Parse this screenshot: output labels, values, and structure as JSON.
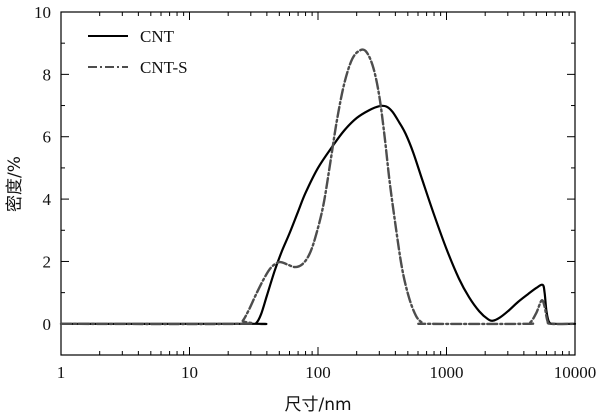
{
  "chart_data": {
    "type": "line",
    "title": "",
    "xlabel": "尺寸/nm",
    "ylabel": "密度/%",
    "xscale": "log",
    "xlim": [
      1,
      10000
    ],
    "ylim": [
      -1,
      10
    ],
    "xticks": [
      {
        "value": 1,
        "label": "1"
      },
      {
        "value": 10,
        "label": "10"
      },
      {
        "value": 100,
        "label": "100"
      },
      {
        "value": 1000,
        "label": "1000"
      },
      {
        "value": 10000,
        "label": "10000"
      }
    ],
    "yticks": [
      {
        "value": 0,
        "label": "0"
      },
      {
        "value": 2,
        "label": "2"
      },
      {
        "value": 4,
        "label": "4"
      },
      {
        "value": 6,
        "label": "6"
      },
      {
        "value": 8,
        "label": "8"
      },
      {
        "value": 10,
        "label": "10"
      }
    ],
    "legend_position": "top-left",
    "series": [
      {
        "name": "CNT",
        "style": "solid",
        "color": "#000000",
        "points": [
          [
            1,
            0
          ],
          [
            30,
            0
          ],
          [
            33,
            0.02
          ],
          [
            36,
            0.3
          ],
          [
            40,
            0.9
          ],
          [
            46,
            1.7
          ],
          [
            52,
            2.3
          ],
          [
            60,
            2.9
          ],
          [
            70,
            3.6
          ],
          [
            80,
            4.2
          ],
          [
            100,
            5.0
          ],
          [
            130,
            5.7
          ],
          [
            160,
            6.2
          ],
          [
            200,
            6.6
          ],
          [
            250,
            6.85
          ],
          [
            300,
            6.98
          ],
          [
            340,
            6.97
          ],
          [
            380,
            6.8
          ],
          [
            430,
            6.45
          ],
          [
            480,
            6.1
          ],
          [
            550,
            5.5
          ],
          [
            650,
            4.6
          ],
          [
            800,
            3.5
          ],
          [
            1000,
            2.4
          ],
          [
            1250,
            1.45
          ],
          [
            1500,
            0.85
          ],
          [
            1800,
            0.4
          ],
          [
            2100,
            0.15
          ],
          [
            2300,
            0.1
          ],
          [
            2600,
            0.2
          ],
          [
            3000,
            0.4
          ],
          [
            3600,
            0.7
          ],
          [
            4300,
            0.95
          ],
          [
            5000,
            1.15
          ],
          [
            5600,
            1.25
          ],
          [
            5800,
            1.0
          ],
          [
            6000,
            0.4
          ],
          [
            6300,
            0.05
          ],
          [
            7000,
            0
          ],
          [
            10000,
            0
          ]
        ]
      },
      {
        "name": "CNT-S",
        "style": "dash-dot",
        "color": "#4d4d4d",
        "points": [
          [
            1,
            0
          ],
          [
            24,
            0
          ],
          [
            26,
            0.1
          ],
          [
            29,
            0.45
          ],
          [
            33,
            0.95
          ],
          [
            38,
            1.45
          ],
          [
            43,
            1.8
          ],
          [
            50,
            1.98
          ],
          [
            58,
            1.9
          ],
          [
            66,
            1.82
          ],
          [
            75,
            1.9
          ],
          [
            85,
            2.2
          ],
          [
            95,
            2.75
          ],
          [
            110,
            3.8
          ],
          [
            125,
            5.2
          ],
          [
            140,
            6.5
          ],
          [
            160,
            7.7
          ],
          [
            185,
            8.5
          ],
          [
            215,
            8.78
          ],
          [
            240,
            8.7
          ],
          [
            270,
            8.2
          ],
          [
            300,
            7.3
          ],
          [
            330,
            6.0
          ],
          [
            360,
            4.6
          ],
          [
            400,
            3.2
          ],
          [
            450,
            1.8
          ],
          [
            510,
            0.85
          ],
          [
            580,
            0.25
          ],
          [
            650,
            0.03
          ],
          [
            700,
            0
          ],
          [
            4000,
            0
          ],
          [
            4500,
            0.05
          ],
          [
            5000,
            0.35
          ],
          [
            5500,
            0.75
          ],
          [
            5800,
            0.55
          ],
          [
            6100,
            0.1
          ],
          [
            6500,
            0
          ],
          [
            10000,
            0
          ]
        ]
      }
    ]
  }
}
